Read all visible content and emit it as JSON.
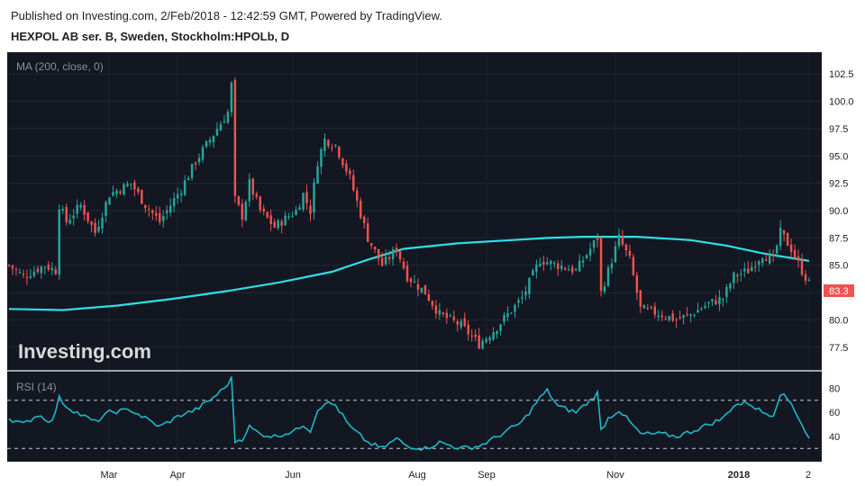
{
  "header": {
    "published": "Published on Investing.com, 2/Feb/2018 - 12:42:59 GMT, Powered by TradingView.",
    "instrument": "HEXPOL AB ser. B, Sweden, Stockholm:HPOLb, D"
  },
  "chart_data": [
    {
      "type": "candlestick",
      "indicator_label": "MA (200, close, 0)",
      "watermark": "Investing.com",
      "ylim": [
        76,
        104
      ],
      "yticks": [
        "102.5",
        "100.0",
        "97.5",
        "95.0",
        "92.5",
        "90.0",
        "87.5",
        "85.0",
        "82.5",
        "80.0",
        "77.5"
      ],
      "last_price": "83.3",
      "xlabels": [
        "Mar",
        "Apr",
        "Jun",
        "Aug",
        "Sep",
        "Nov",
        "2018",
        "2"
      ],
      "price_path": [
        [
          0,
          85.0
        ],
        [
          4,
          84.0
        ],
        [
          10,
          85.0
        ],
        [
          13,
          84.5
        ],
        [
          14,
          90.5
        ],
        [
          16,
          89.0
        ],
        [
          20,
          90.5
        ],
        [
          24,
          88.0
        ],
        [
          28,
          91.5
        ],
        [
          34,
          92.5
        ],
        [
          38,
          90.5
        ],
        [
          42,
          89.0
        ],
        [
          48,
          92.0
        ],
        [
          52,
          94.5
        ],
        [
          56,
          96.5
        ],
        [
          61,
          99.0
        ],
        [
          62,
          101.5
        ],
        [
          63,
          91.0
        ],
        [
          65,
          89.5
        ],
        [
          67,
          92.5
        ],
        [
          70,
          90.0
        ],
        [
          74,
          88.5
        ],
        [
          80,
          90.0
        ],
        [
          82,
          91.5
        ],
        [
          84,
          90.0
        ],
        [
          86,
          94.5
        ],
        [
          88,
          96.5
        ],
        [
          91,
          96.0
        ],
        [
          95,
          93.0
        ],
        [
          100,
          87.5
        ],
        [
          104,
          85.0
        ],
        [
          108,
          86.5
        ],
        [
          111,
          84.0
        ],
        [
          116,
          82.5
        ],
        [
          120,
          80.5
        ],
        [
          126,
          79.5
        ],
        [
          131,
          77.8
        ],
        [
          135,
          79.0
        ],
        [
          139,
          80.5
        ],
        [
          143,
          82.0
        ],
        [
          148,
          85.5
        ],
        [
          153,
          85.0
        ],
        [
          158,
          84.5
        ],
        [
          162,
          86.5
        ],
        [
          164,
          87.5
        ],
        [
          165,
          82.5
        ],
        [
          167,
          84.5
        ],
        [
          170,
          87.5
        ],
        [
          173,
          85.5
        ],
        [
          176,
          81.0
        ],
        [
          182,
          80.5
        ],
        [
          186,
          80.0
        ],
        [
          190,
          80.5
        ],
        [
          195,
          81.5
        ],
        [
          199,
          82.0
        ],
        [
          202,
          84.0
        ],
        [
          206,
          84.5
        ],
        [
          210,
          86.0
        ],
        [
          213,
          85.5
        ],
        [
          215,
          88.0
        ],
        [
          218,
          86.5
        ],
        [
          221,
          84.5
        ],
        [
          223,
          83.3
        ]
      ],
      "ma_path": [
        [
          0,
          81.0
        ],
        [
          15,
          80.9
        ],
        [
          30,
          81.3
        ],
        [
          45,
          81.9
        ],
        [
          60,
          82.6
        ],
        [
          75,
          83.4
        ],
        [
          90,
          84.4
        ],
        [
          100,
          85.5
        ],
        [
          110,
          86.5
        ],
        [
          125,
          87.0
        ],
        [
          140,
          87.3
        ],
        [
          150,
          87.5
        ],
        [
          160,
          87.6
        ],
        [
          175,
          87.6
        ],
        [
          190,
          87.3
        ],
        [
          200,
          86.8
        ],
        [
          210,
          86.1
        ],
        [
          223,
          85.4
        ]
      ]
    },
    {
      "type": "line",
      "indicator_label": "RSI (14)",
      "ylim": [
        25,
        90
      ],
      "yticks": [
        "80",
        "60",
        "40"
      ],
      "bands": [
        70,
        30
      ],
      "rsi_path": [
        [
          0,
          55
        ],
        [
          4,
          50
        ],
        [
          8,
          58
        ],
        [
          12,
          52
        ],
        [
          14,
          72
        ],
        [
          16,
          65
        ],
        [
          20,
          58
        ],
        [
          24,
          52
        ],
        [
          28,
          60
        ],
        [
          34,
          62
        ],
        [
          38,
          55
        ],
        [
          42,
          48
        ],
        [
          48,
          58
        ],
        [
          52,
          62
        ],
        [
          56,
          70
        ],
        [
          60,
          80
        ],
        [
          62,
          88
        ],
        [
          63,
          36
        ],
        [
          65,
          38
        ],
        [
          67,
          48
        ],
        [
          70,
          42
        ],
        [
          74,
          40
        ],
        [
          80,
          45
        ],
        [
          82,
          50
        ],
        [
          84,
          45
        ],
        [
          86,
          62
        ],
        [
          88,
          68
        ],
        [
          91,
          66
        ],
        [
          95,
          48
        ],
        [
          100,
          35
        ],
        [
          104,
          30
        ],
        [
          108,
          38
        ],
        [
          111,
          32
        ],
        [
          116,
          30
        ],
        [
          120,
          35
        ],
        [
          126,
          30
        ],
        [
          131,
          32
        ],
        [
          135,
          38
        ],
        [
          139,
          45
        ],
        [
          143,
          52
        ],
        [
          148,
          72
        ],
        [
          150,
          78
        ],
        [
          153,
          65
        ],
        [
          158,
          60
        ],
        [
          162,
          70
        ],
        [
          164,
          76
        ],
        [
          165,
          45
        ],
        [
          167,
          55
        ],
        [
          170,
          62
        ],
        [
          173,
          52
        ],
        [
          176,
          42
        ],
        [
          182,
          42
        ],
        [
          186,
          40
        ],
        [
          190,
          44
        ],
        [
          195,
          50
        ],
        [
          199,
          55
        ],
        [
          202,
          66
        ],
        [
          206,
          68
        ],
        [
          210,
          60
        ],
        [
          213,
          58
        ],
        [
          215,
          76
        ],
        [
          218,
          68
        ],
        [
          221,
          50
        ],
        [
          223,
          38
        ]
      ]
    }
  ]
}
